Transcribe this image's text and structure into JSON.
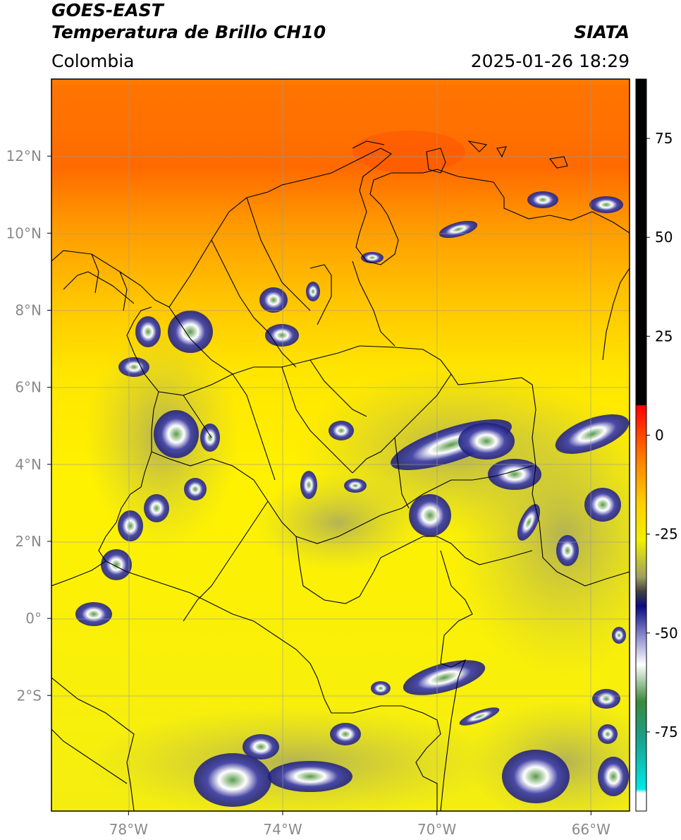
{
  "header": {
    "satellite": "GOES-EAST",
    "product": "Temperatura de Brillo CH10",
    "brand": "SIATA",
    "region": "Colombia",
    "datetime": "2025-01-26 18:29"
  },
  "map": {
    "lon_range": [
      -80,
      -65
    ],
    "lat_range": [
      -5,
      14
    ],
    "x_ticks": [
      {
        "value": -78,
        "label": "78°W"
      },
      {
        "value": -74,
        "label": "74°W"
      },
      {
        "value": -70,
        "label": "70°W"
      },
      {
        "value": -66,
        "label": "66°W"
      }
    ],
    "y_ticks": [
      {
        "value": 12,
        "label": "12°N"
      },
      {
        "value": 10,
        "label": "10°N"
      },
      {
        "value": 8,
        "label": "8°N"
      },
      {
        "value": 6,
        "label": "6°N"
      },
      {
        "value": 4,
        "label": "4°N"
      },
      {
        "value": 2,
        "label": "2°N"
      },
      {
        "value": 0,
        "label": "0°"
      },
      {
        "value": -2,
        "label": "2°S"
      }
    ],
    "gridlines": true
  },
  "colorbar": {
    "range": [
      -95,
      90
    ],
    "tick_labels": [
      {
        "value": 75,
        "label": "75"
      },
      {
        "value": 50,
        "label": "50"
      },
      {
        "value": 25,
        "label": "25"
      },
      {
        "value": 0,
        "label": "0"
      },
      {
        "value": -25,
        "label": "-25"
      },
      {
        "value": -50,
        "label": "-50"
      },
      {
        "value": -75,
        "label": "-75"
      }
    ]
  }
}
